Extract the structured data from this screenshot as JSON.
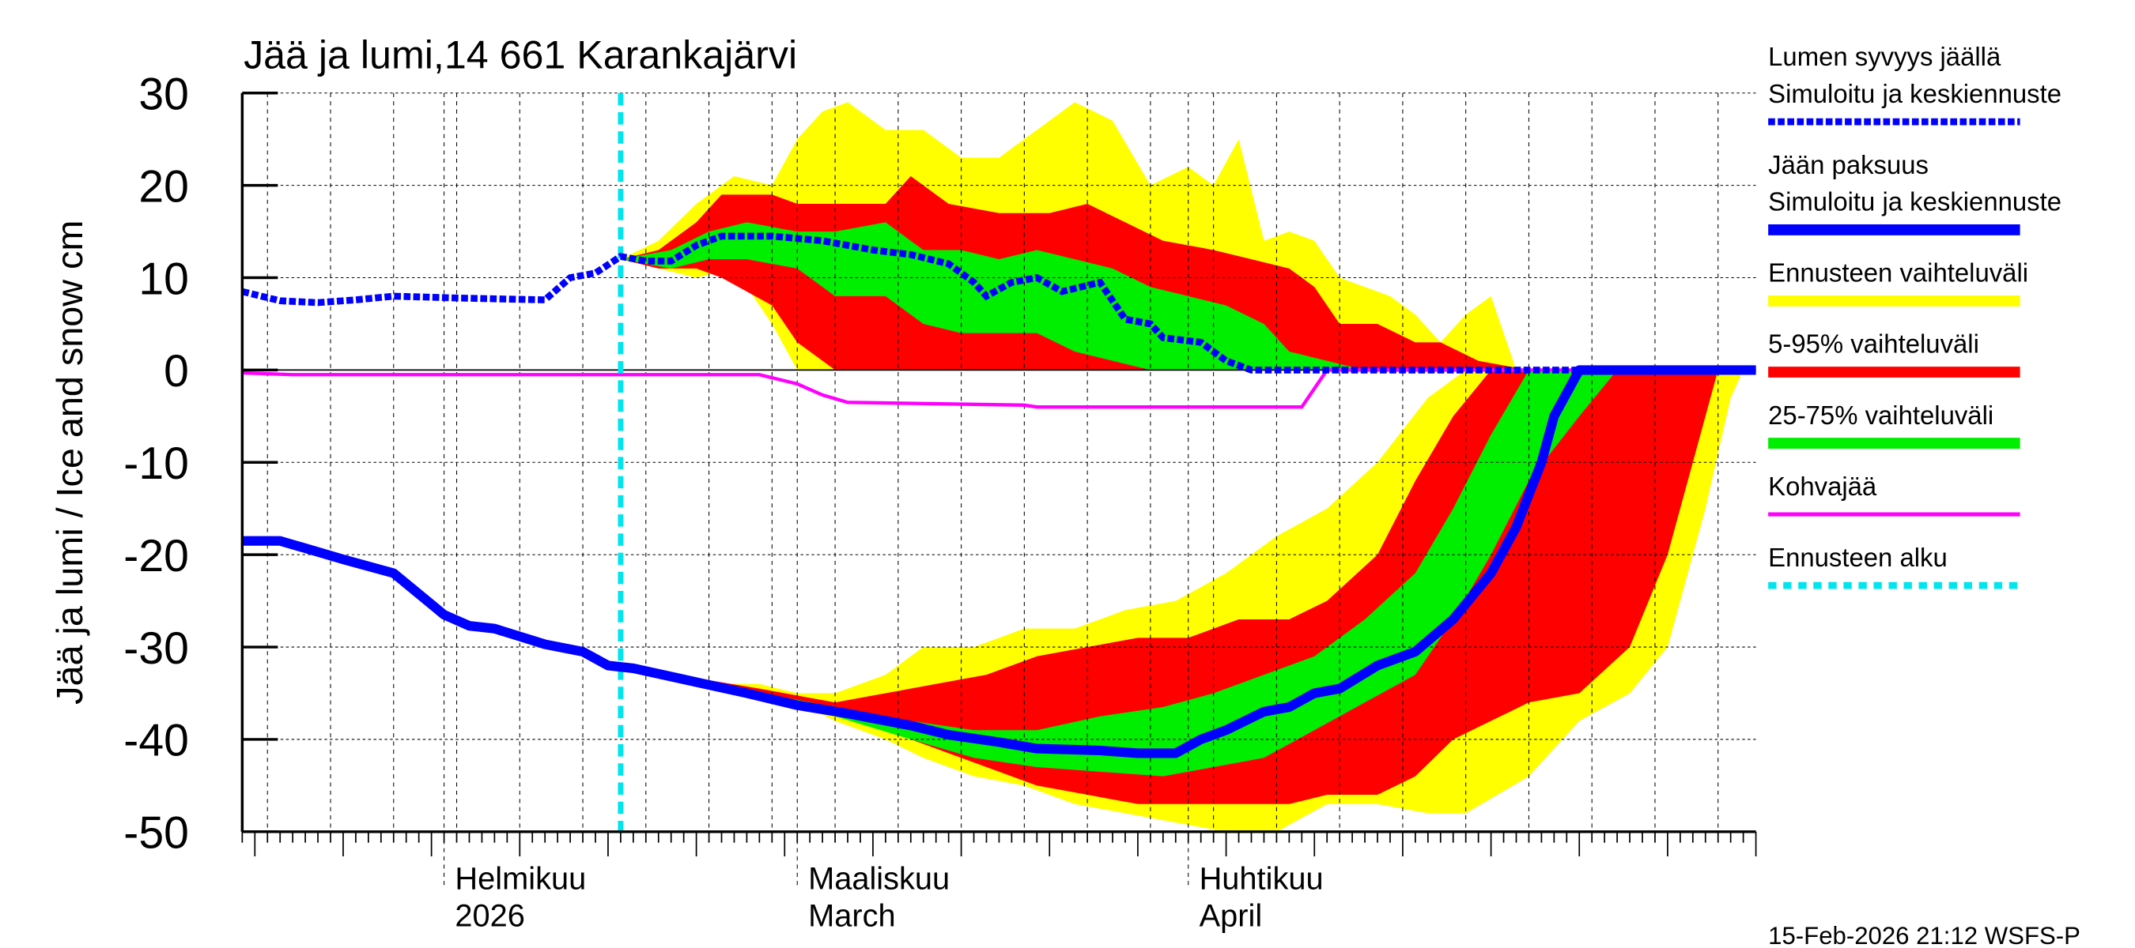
{
  "chart_data": {
    "type": "area",
    "title": "Jää ja lumi,14 661 Karankajärvi",
    "ylabel": "Jää ja lumi / Ice and snow    cm",
    "ylim": [
      -50,
      30
    ],
    "yticks": [
      "30",
      "20",
      "10",
      "0",
      "-10",
      "-20",
      "-30",
      "-40",
      "-50"
    ],
    "xlim": [
      "2026-01-16",
      "2026-05-16"
    ],
    "xticks": [
      {
        "date": "2026-02-01",
        "line1": "Helmikuu",
        "line2": "2026"
      },
      {
        "date": "2026-03-01",
        "line1": "Maaliskuu",
        "line2": "March"
      },
      {
        "date": "2026-04-01",
        "line1": "Huhtikuu",
        "line2": "April"
      }
    ],
    "grid": true,
    "legend_position": "right",
    "forecast_start": "2026-02-15",
    "footer": "15-Feb-2026 21:12 WSFS-P",
    "colors": {
      "snow": "#0000ff",
      "ice": "#0000ff",
      "yellow": "#ffff00",
      "red": "#ff0000",
      "green": "#00ee00",
      "kohva": "#ff00ff",
      "forecast": "#00e5ee"
    },
    "legend": [
      {
        "line1": "Lumen syvyys jäällä",
        "line2": "Simuloitu ja keskiennuste",
        "style": "dashed-blue"
      },
      {
        "line1": "Jään paksuus",
        "line2": "Simuloitu ja keskiennuste",
        "style": "solid-blue"
      },
      {
        "line1": "Ennusteen vaihteluväli",
        "style": "yellow"
      },
      {
        "line1": "5-95% vaihteluväli",
        "style": "red"
      },
      {
        "line1": "25-75% vaihteluväli",
        "style": "green"
      },
      {
        "line1": "Kohvajää",
        "style": "magenta"
      },
      {
        "line1": "Ennusteen alku",
        "style": "dashed-cyan"
      }
    ],
    "snow_depth": [
      [
        "2026-01-16",
        8.5
      ],
      [
        "2026-01-19",
        7.5
      ],
      [
        "2026-01-22",
        7.3
      ],
      [
        "2026-01-25",
        7.6
      ],
      [
        "2026-01-28",
        8
      ],
      [
        "2026-02-02",
        7.8
      ],
      [
        "2026-02-09",
        7.6
      ],
      [
        "2026-02-11",
        10
      ],
      [
        "2026-02-13",
        10.5
      ],
      [
        "2026-02-15",
        12.3
      ],
      [
        "2026-02-17",
        11.8
      ],
      [
        "2026-02-19",
        11.8
      ],
      [
        "2026-02-21",
        13.5
      ],
      [
        "2026-02-23",
        14.5
      ],
      [
        "2026-02-27",
        14.5
      ],
      [
        "2026-03-03",
        14
      ],
      [
        "2026-03-07",
        13
      ],
      [
        "2026-03-10",
        12.5
      ],
      [
        "2026-03-13",
        11.5
      ],
      [
        "2026-03-15",
        9.5
      ],
      [
        "2026-03-16",
        8
      ],
      [
        "2026-03-18",
        9.5
      ],
      [
        "2026-03-20",
        10
      ],
      [
        "2026-03-22",
        8.5
      ],
      [
        "2026-03-25",
        9.5
      ],
      [
        "2026-03-27",
        5.5
      ],
      [
        "2026-03-29",
        5
      ],
      [
        "2026-03-30",
        3.5
      ],
      [
        "2026-04-02",
        3
      ],
      [
        "2026-04-04",
        1
      ],
      [
        "2026-04-06",
        0
      ],
      [
        "2026-05-16",
        0
      ]
    ],
    "ice_thickness": [
      [
        "2026-01-16",
        -18.5
      ],
      [
        "2026-01-19",
        -18.5
      ],
      [
        "2026-01-24",
        -20.5
      ],
      [
        "2026-01-28",
        -22
      ],
      [
        "2026-02-01",
        -26.5
      ],
      [
        "2026-02-03",
        -27.7
      ],
      [
        "2026-02-05",
        -28
      ],
      [
        "2026-02-09",
        -29.7
      ],
      [
        "2026-02-12",
        -30.5
      ],
      [
        "2026-02-14",
        -32
      ],
      [
        "2026-02-16",
        -32.3
      ],
      [
        "2026-02-20",
        -33.5
      ],
      [
        "2026-02-25",
        -35
      ],
      [
        "2026-03-01",
        -36.3
      ],
      [
        "2026-03-05",
        -37.2
      ],
      [
        "2026-03-10",
        -38.5
      ],
      [
        "2026-03-13",
        -39.5
      ],
      [
        "2026-03-17",
        -40.3
      ],
      [
        "2026-03-20",
        -41
      ],
      [
        "2026-03-25",
        -41.2
      ],
      [
        "2026-03-28",
        -41.5
      ],
      [
        "2026-03-31",
        -41.5
      ],
      [
        "2026-04-02",
        -40
      ],
      [
        "2026-04-04",
        -39
      ],
      [
        "2026-04-07",
        -37
      ],
      [
        "2026-04-09",
        -36.5
      ],
      [
        "2026-04-11",
        -35
      ],
      [
        "2026-04-13",
        -34.5
      ],
      [
        "2026-04-16",
        -32
      ],
      [
        "2026-04-19",
        -30.5
      ],
      [
        "2026-04-22",
        -27
      ],
      [
        "2026-04-25",
        -22
      ],
      [
        "2026-04-27",
        -17
      ],
      [
        "2026-04-29",
        -10
      ],
      [
        "2026-04-30",
        -5
      ],
      [
        "2026-05-02",
        0
      ],
      [
        "2026-05-16",
        0
      ]
    ],
    "kohvajaa": [
      [
        "2026-01-16",
        -0.3
      ],
      [
        "2026-01-20",
        -0.5
      ],
      [
        "2026-02-26",
        -0.5
      ],
      [
        "2026-03-01",
        -1.5
      ],
      [
        "2026-03-03",
        -2.7
      ],
      [
        "2026-03-05",
        -3.5
      ],
      [
        "2026-03-19",
        -3.8
      ],
      [
        "2026-03-20",
        -4
      ],
      [
        "2026-04-10",
        -4
      ],
      [
        "2026-04-12",
        0
      ],
      [
        "2026-05-16",
        0
      ]
    ],
    "bands": [
      {
        "name": "snow-yellow",
        "color": "yellow",
        "points": [
          [
            "2026-02-15",
            12,
            12
          ],
          [
            "2026-02-18",
            11,
            14
          ],
          [
            "2026-02-21",
            10,
            18
          ],
          [
            "2026-02-24",
            11,
            21
          ],
          [
            "2026-02-27",
            5,
            20
          ],
          [
            "2026-03-01",
            0,
            25
          ],
          [
            "2026-03-03",
            0,
            28
          ],
          [
            "2026-03-05",
            0,
            29
          ],
          [
            "2026-03-08",
            0,
            26
          ],
          [
            "2026-03-11",
            0,
            26
          ],
          [
            "2026-03-14",
            0,
            23
          ],
          [
            "2026-03-17",
            0,
            23
          ],
          [
            "2026-03-20",
            0,
            26
          ],
          [
            "2026-03-23",
            0,
            29
          ],
          [
            "2026-03-26",
            0,
            27
          ],
          [
            "2026-03-29",
            0,
            20
          ],
          [
            "2026-04-01",
            0,
            22
          ],
          [
            "2026-04-03",
            0,
            20
          ],
          [
            "2026-04-05",
            0,
            25
          ],
          [
            "2026-04-07",
            0,
            14
          ],
          [
            "2026-04-09",
            0,
            15
          ],
          [
            "2026-04-11",
            0,
            14
          ],
          [
            "2026-04-13",
            0,
            10
          ],
          [
            "2026-04-15",
            0,
            9
          ],
          [
            "2026-04-17",
            0,
            8
          ],
          [
            "2026-04-19",
            0,
            6
          ],
          [
            "2026-04-21",
            0,
            3
          ],
          [
            "2026-04-23",
            0,
            6
          ],
          [
            "2026-04-25",
            0,
            8
          ],
          [
            "2026-04-27",
            0,
            0
          ]
        ]
      },
      {
        "name": "snow-red",
        "color": "red",
        "points": [
          [
            "2026-02-15",
            12,
            12
          ],
          [
            "2026-02-18",
            11,
            13
          ],
          [
            "2026-02-21",
            11,
            16
          ],
          [
            "2026-02-23",
            10,
            19
          ],
          [
            "2026-02-27",
            7,
            19
          ],
          [
            "2026-03-01",
            3,
            18
          ],
          [
            "2026-03-04",
            0,
            18
          ],
          [
            "2026-03-08",
            0,
            18
          ],
          [
            "2026-03-10",
            0,
            21
          ],
          [
            "2026-03-13",
            0,
            18
          ],
          [
            "2026-03-17",
            0,
            17
          ],
          [
            "2026-03-21",
            0,
            17
          ],
          [
            "2026-03-24",
            0,
            18
          ],
          [
            "2026-03-27",
            0,
            16
          ],
          [
            "2026-03-30",
            0,
            14
          ],
          [
            "2026-04-03",
            0,
            13
          ],
          [
            "2026-04-06",
            0,
            12
          ],
          [
            "2026-04-09",
            0,
            11
          ],
          [
            "2026-04-11",
            0,
            9
          ],
          [
            "2026-04-13",
            0,
            5
          ],
          [
            "2026-04-16",
            0,
            5
          ],
          [
            "2026-04-19",
            0,
            3
          ],
          [
            "2026-04-21",
            0,
            3
          ],
          [
            "2026-04-24",
            0,
            1
          ],
          [
            "2026-04-28",
            0,
            0
          ]
        ]
      },
      {
        "name": "snow-green",
        "color": "green",
        "points": [
          [
            "2026-02-15",
            12,
            12
          ],
          [
            "2026-02-19",
            11,
            13
          ],
          [
            "2026-02-22",
            12,
            15
          ],
          [
            "2026-02-25",
            12,
            16
          ],
          [
            "2026-03-01",
            11,
            15
          ],
          [
            "2026-03-04",
            8,
            15
          ],
          [
            "2026-03-08",
            8,
            16
          ],
          [
            "2026-03-11",
            5,
            13
          ],
          [
            "2026-03-14",
            4,
            13
          ],
          [
            "2026-03-17",
            4,
            12
          ],
          [
            "2026-03-20",
            4,
            13
          ],
          [
            "2026-03-23",
            2,
            12
          ],
          [
            "2026-03-26",
            1,
            11
          ],
          [
            "2026-03-29",
            0,
            9
          ],
          [
            "2026-04-01",
            0,
            8
          ],
          [
            "2026-04-04",
            0,
            7
          ],
          [
            "2026-04-07",
            0,
            5
          ],
          [
            "2026-04-09",
            0,
            2
          ],
          [
            "2026-04-12",
            0,
            1
          ],
          [
            "2026-04-15",
            0,
            0
          ]
        ]
      },
      {
        "name": "ice-yellow",
        "color": "yellow",
        "points": [
          [
            "2026-02-15",
            -32,
            -32
          ],
          [
            "2026-02-22",
            -34,
            -34
          ],
          [
            "2026-02-26",
            -35,
            -34
          ],
          [
            "2026-03-01",
            -36,
            -35
          ],
          [
            "2026-03-04",
            -38,
            -35
          ],
          [
            "2026-03-08",
            -40,
            -33
          ],
          [
            "2026-03-11",
            -42,
            -30
          ],
          [
            "2026-03-15",
            -44,
            -30
          ],
          [
            "2026-03-19",
            -45,
            -28
          ],
          [
            "2026-03-23",
            -47,
            -28
          ],
          [
            "2026-03-27",
            -48,
            -26
          ],
          [
            "2026-03-31",
            -49,
            -25
          ],
          [
            "2026-04-04",
            -50,
            -22
          ],
          [
            "2026-04-08",
            -50,
            -18
          ],
          [
            "2026-04-12",
            -47,
            -15
          ],
          [
            "2026-04-16",
            -47,
            -10
          ],
          [
            "2026-04-20",
            -48,
            -3
          ],
          [
            "2026-04-23",
            -48,
            0
          ],
          [
            "2026-04-28",
            -44,
            0
          ],
          [
            "2026-05-02",
            -38,
            0
          ],
          [
            "2026-05-06",
            -35,
            0
          ],
          [
            "2026-05-09",
            -30,
            0
          ],
          [
            "2026-05-12",
            -15,
            0
          ],
          [
            "2026-05-14",
            -3,
            0
          ],
          [
            "2026-05-15",
            0,
            0
          ]
        ]
      },
      {
        "name": "ice-red",
        "color": "red",
        "points": [
          [
            "2026-02-15",
            -32,
            -32
          ],
          [
            "2026-02-26",
            -35,
            -34.5
          ],
          [
            "2026-03-04",
            -37,
            -36
          ],
          [
            "2026-03-08",
            -39,
            -35
          ],
          [
            "2026-03-12",
            -41,
            -34
          ],
          [
            "2026-03-16",
            -43,
            -33
          ],
          [
            "2026-03-20",
            -45,
            -31
          ],
          [
            "2026-03-24",
            -46,
            -30
          ],
          [
            "2026-03-28",
            -47,
            -29
          ],
          [
            "2026-04-01",
            -47,
            -29
          ],
          [
            "2026-04-05",
            -47,
            -27
          ],
          [
            "2026-04-09",
            -47,
            -27
          ],
          [
            "2026-04-12",
            -46,
            -25
          ],
          [
            "2026-04-16",
            -46,
            -20
          ],
          [
            "2026-04-19",
            -44,
            -12
          ],
          [
            "2026-04-22",
            -40,
            -5
          ],
          [
            "2026-04-25",
            -38,
            0
          ],
          [
            "2026-04-28",
            -36,
            0
          ],
          [
            "2026-05-02",
            -35,
            0
          ],
          [
            "2026-05-06",
            -30,
            0
          ],
          [
            "2026-05-09",
            -20,
            0
          ],
          [
            "2026-05-12",
            -5,
            0
          ],
          [
            "2026-05-13",
            0,
            0
          ]
        ]
      },
      {
        "name": "ice-green",
        "color": "green",
        "points": [
          [
            "2026-02-15",
            -32,
            -32
          ],
          [
            "2026-03-04",
            -37.5,
            -36.5
          ],
          [
            "2026-03-10",
            -40,
            -38
          ],
          [
            "2026-03-15",
            -42,
            -39
          ],
          [
            "2026-03-20",
            -43,
            -39
          ],
          [
            "2026-03-25",
            -43.5,
            -37.5
          ],
          [
            "2026-03-30",
            -44,
            -36.5
          ],
          [
            "2026-04-03",
            -43,
            -35
          ],
          [
            "2026-04-07",
            -42,
            -33
          ],
          [
            "2026-04-11",
            -39,
            -31
          ],
          [
            "2026-04-15",
            -36,
            -27
          ],
          [
            "2026-04-19",
            -33,
            -22
          ],
          [
            "2026-04-22",
            -27,
            -15
          ],
          [
            "2026-04-25",
            -20,
            -7
          ],
          [
            "2026-04-28",
            -12,
            0
          ],
          [
            "2026-05-02",
            -5,
            0
          ],
          [
            "2026-05-05",
            0,
            0
          ]
        ]
      }
    ]
  }
}
